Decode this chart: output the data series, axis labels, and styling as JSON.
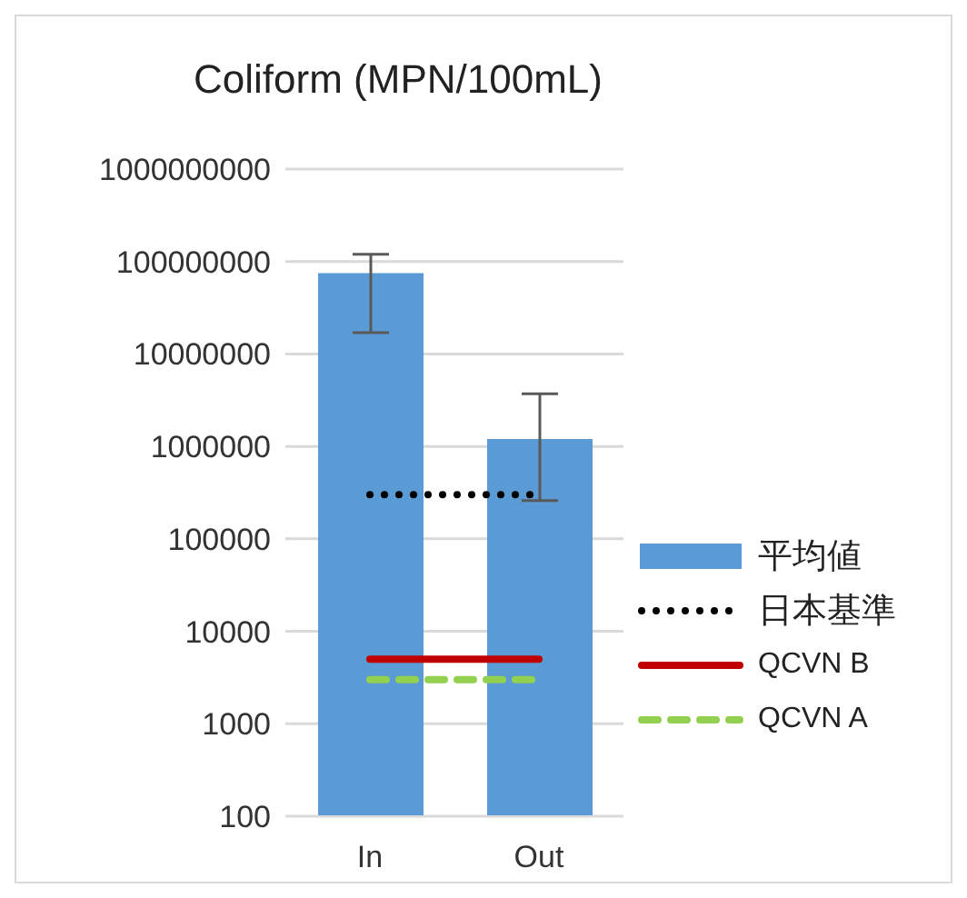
{
  "chart_data": {
    "type": "bar",
    "title": "Coliform (MPN/100mL)",
    "categories": [
      "In",
      "Out"
    ],
    "series": [
      {
        "name": "平均値",
        "color": "#5b9bd5",
        "values": [
          75000000,
          1200000
        ],
        "errors": [
          [
            17000000,
            120000000
          ],
          [
            260000,
            3700000
          ]
        ]
      },
      {
        "name": "日本基準",
        "type": "line",
        "color": "#000000",
        "line_style": "dotted",
        "values": [
          300000,
          300000
        ]
      },
      {
        "name": "QCVN B",
        "type": "line",
        "color": "#c00000",
        "line_style": "solid",
        "values": [
          5000,
          5000
        ]
      },
      {
        "name": "QCVN A",
        "type": "line",
        "color": "#92d050",
        "line_style": "dashed",
        "values": [
          3000,
          3000
        ]
      }
    ],
    "log": "y",
    "ylim": [
      100,
      1000000000
    ],
    "yticks": [
      100,
      1000,
      10000,
      100000,
      1000000,
      10000000,
      100000000,
      1000000000
    ],
    "grid": "y",
    "legend": "right",
    "marker": "none"
  }
}
